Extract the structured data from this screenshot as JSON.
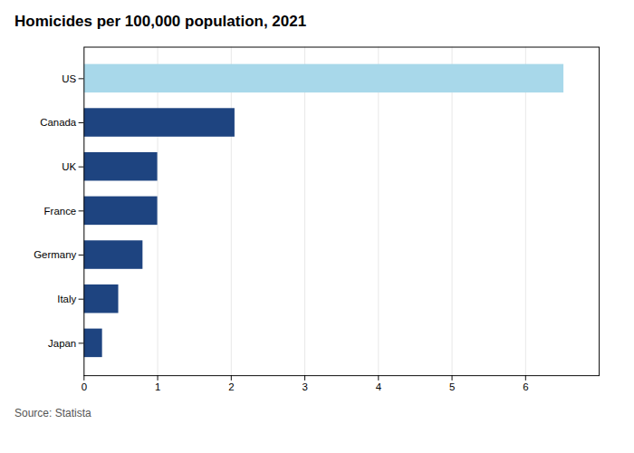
{
  "chart_data": {
    "type": "bar",
    "orientation": "horizontal",
    "title": "Homicides per 100,000 population, 2021",
    "annotations": [
      "Source: Statista"
    ],
    "categories": [
      "US",
      "Canada",
      "UK",
      "France",
      "Germany",
      "Italy",
      "Japan"
    ],
    "values": [
      6.52,
      2.05,
      1.0,
      1.0,
      0.8,
      0.47,
      0.25
    ],
    "colors": [
      "#a8d8ea",
      "#1e4480",
      "#1e4480",
      "#1e4480",
      "#1e4480",
      "#1e4480",
      "#1e4480"
    ],
    "xlim": [
      0,
      7
    ],
    "xticks": [
      0,
      1,
      2,
      3,
      4,
      5,
      6
    ],
    "grid": true
  }
}
